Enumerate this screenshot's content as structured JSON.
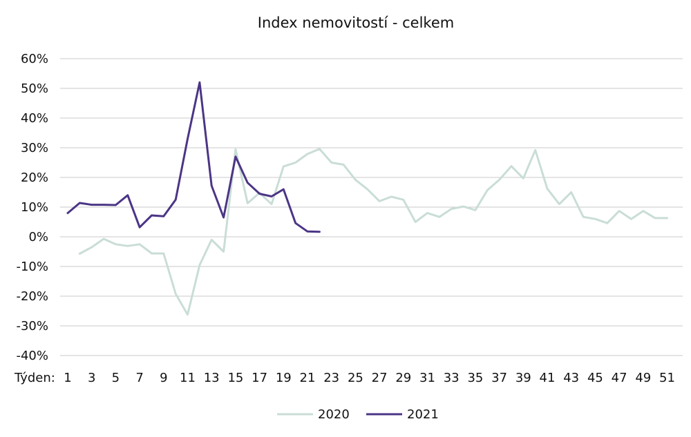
{
  "chart_data": {
    "type": "line",
    "title": "Index nemovitostí - celkem",
    "xlabel": "Týden:",
    "ylabel": "",
    "x_ticks": [
      1,
      3,
      5,
      7,
      9,
      11,
      13,
      15,
      17,
      19,
      21,
      23,
      25,
      27,
      29,
      31,
      33,
      35,
      37,
      39,
      41,
      43,
      45,
      47,
      49,
      51
    ],
    "y_ticks": [
      -40,
      -30,
      -20,
      -10,
      0,
      10,
      20,
      30,
      40,
      50,
      60
    ],
    "y_tick_labels": [
      "-40%",
      "-30%",
      "-20%",
      "-10%",
      "0%",
      "10%",
      "20%",
      "30%",
      "40%",
      "50%",
      "60%"
    ],
    "ylim": [
      -40,
      60
    ],
    "xlim": [
      1,
      53
    ],
    "grid": "horizontal",
    "legend": "bottom-center",
    "series": [
      {
        "name": "2020",
        "color": "#c9ddd6",
        "x": [
          2,
          3,
          4,
          5,
          6,
          7,
          8,
          9,
          10,
          11,
          12,
          13,
          14,
          15,
          16,
          17,
          18,
          19,
          20,
          21,
          22,
          23,
          24,
          25,
          26,
          27,
          28,
          29,
          30,
          31,
          32,
          33,
          34,
          35,
          36,
          37,
          38,
          39,
          40,
          41,
          42,
          43,
          44,
          45,
          46,
          47,
          48,
          49,
          50,
          51,
          52,
          53
        ],
        "values": [
          -5.7,
          -3.5,
          -0.7,
          -2.5,
          -3.1,
          -2.5,
          -5.6,
          -5.6,
          -19.2,
          -26.2,
          -9.5,
          -1.0,
          -5.0,
          29.5,
          11.3,
          14.8,
          11.0,
          23.7,
          25.0,
          27.9,
          29.6,
          25.0,
          24.3,
          19.2,
          16.0,
          12.0,
          13.5,
          12.5,
          5.0,
          8.0,
          6.7,
          9.4,
          10.2,
          9.0,
          15.7,
          19.2,
          23.8,
          19.7,
          29.2,
          16.2,
          11.0,
          15.0,
          6.7,
          6.0,
          4.6,
          8.7,
          6.0,
          8.7,
          6.3,
          6.3,
          null,
          null
        ]
      },
      {
        "name": "2021",
        "color": "#4b3585",
        "x": [
          1,
          2,
          3,
          4,
          5,
          6,
          7,
          8,
          9,
          10,
          11,
          12,
          13,
          14,
          15,
          16,
          17,
          18,
          19,
          20,
          21,
          22
        ],
        "values": [
          8.0,
          11.4,
          10.8,
          10.8,
          10.7,
          14.0,
          3.2,
          7.2,
          6.9,
          12.5,
          33.0,
          52.0,
          17.2,
          6.5,
          27.0,
          18.2,
          14.5,
          13.6,
          16.0,
          4.6,
          1.8,
          1.7
        ]
      }
    ]
  }
}
